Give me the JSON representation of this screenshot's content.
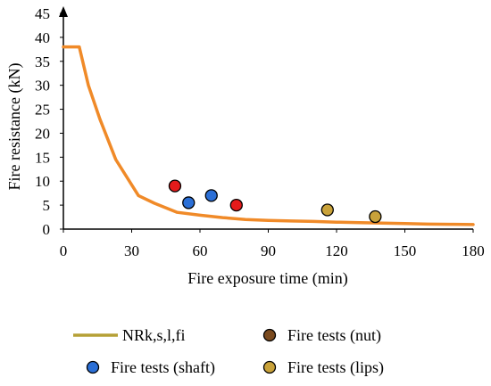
{
  "chart_data": {
    "type": "scatter",
    "title": "",
    "xlabel": "Fire exposure time (min)",
    "ylabel": "Fire resistance (kN)",
    "xlim": [
      0,
      180
    ],
    "ylim": [
      0,
      45
    ],
    "x_ticks": [
      "0",
      "30",
      "60",
      "90",
      "120",
      "150",
      "180"
    ],
    "y_ticks": [
      "0",
      "5",
      "10",
      "15",
      "20",
      "25",
      "30",
      "35",
      "40",
      "45"
    ],
    "grid": false,
    "legend_position": "bottom",
    "series": [
      {
        "name": "NRk,s,l,fi",
        "kind": "line",
        "color": "#f08a28",
        "legend_color": "#b5a035",
        "x": [
          0,
          2,
          7,
          11,
          16,
          23,
          33,
          40,
          50,
          60,
          70,
          80,
          90,
          100,
          110,
          120,
          130,
          140,
          150,
          160,
          170,
          180
        ],
        "y": [
          38,
          38,
          38,
          30,
          23,
          14.5,
          7,
          5.4,
          3.5,
          2.9,
          2.4,
          2.0,
          1.8,
          1.7,
          1.6,
          1.45,
          1.35,
          1.25,
          1.15,
          1.05,
          1.0,
          0.95
        ]
      },
      {
        "name": "Fire tests (nut)",
        "kind": "marker",
        "color": "#e41b1b",
        "legend_color": "#7a4a1e",
        "x": [
          49,
          76
        ],
        "y": [
          9,
          5
        ]
      },
      {
        "name": "Fire tests (shaft)",
        "kind": "marker",
        "color": "#2b6fd6",
        "legend_color": "#2b6fd6",
        "x": [
          55,
          65
        ],
        "y": [
          5.5,
          7
        ]
      },
      {
        "name": "Fire tests (lips)",
        "kind": "marker",
        "color": "#c9a23a",
        "legend_color": "#c9a23a",
        "x": [
          116,
          137
        ],
        "y": [
          4,
          2.6
        ]
      }
    ]
  }
}
